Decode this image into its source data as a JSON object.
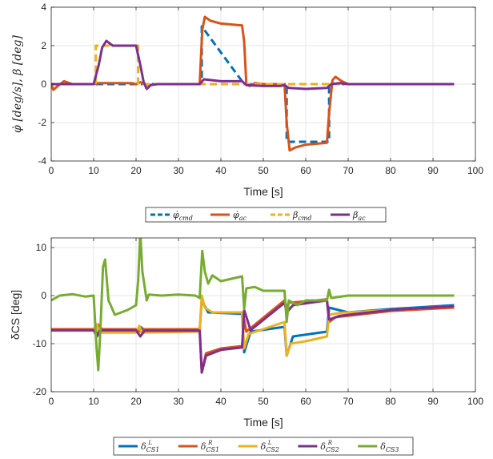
{
  "colors": {
    "blue": "#0072BD",
    "orange": "#D95319",
    "yellow": "#EDB120",
    "purple": "#7E2F8E",
    "green": "#77AC30",
    "axis": "#262626",
    "grid": "#e6e6e6"
  },
  "chart_data": [
    {
      "type": "line",
      "title": "",
      "xlabel": "Time [s]",
      "ylabel": "φ̇ [deg/s], β [deg]",
      "xlim": [
        0,
        100
      ],
      "ylim": [
        -4,
        4
      ],
      "xticks": [
        0,
        10,
        20,
        30,
        40,
        50,
        60,
        70,
        80,
        90,
        100
      ],
      "yticks": [
        -4,
        -2,
        0,
        2,
        4
      ],
      "grid": true,
      "legend_position": "below",
      "series": [
        {
          "name": "φ̇cmd",
          "label_main": "φ̇",
          "label_sub": "cmd",
          "color": "#0072BD",
          "dashed": true,
          "points": [
            [
              0,
              0
            ],
            [
              35.5,
              0
            ],
            [
              35.5,
              3
            ],
            [
              45.5,
              0
            ],
            [
              55.5,
              0
            ],
            [
              55.5,
              -3
            ],
            [
              65.5,
              -3
            ],
            [
              65.5,
              0
            ],
            [
              95,
              0
            ]
          ]
        },
        {
          "name": "φ̇ac",
          "label_main": "φ̇",
          "label_sub": "ac",
          "color": "#D95319",
          "dashed": false,
          "points": [
            [
              0,
              0
            ],
            [
              0.5,
              -0.3
            ],
            [
              1.5,
              -0.1
            ],
            [
              3,
              0.15
            ],
            [
              5,
              0
            ],
            [
              10,
              0
            ],
            [
              11,
              0.05
            ],
            [
              19,
              0.05
            ],
            [
              20,
              0
            ],
            [
              21,
              0.1
            ],
            [
              23,
              -0.05
            ],
            [
              25,
              0
            ],
            [
              35,
              0
            ],
            [
              35.6,
              2.8
            ],
            [
              36.2,
              3.5
            ],
            [
              37.5,
              3.3
            ],
            [
              40,
              3.15
            ],
            [
              45,
              3.05
            ],
            [
              45.5,
              2.2
            ],
            [
              46,
              0
            ],
            [
              46.8,
              -0.1
            ],
            [
              48,
              0.05
            ],
            [
              50,
              0
            ],
            [
              55,
              0
            ],
            [
              55.5,
              -2
            ],
            [
              56.2,
              -3.45
            ],
            [
              57.5,
              -3.3
            ],
            [
              60,
              -3.15
            ],
            [
              65,
              -3.05
            ],
            [
              65.5,
              -1.5
            ],
            [
              66.3,
              0.2
            ],
            [
              67,
              0.38
            ],
            [
              68.5,
              0.15
            ],
            [
              70,
              0
            ],
            [
              95,
              0
            ]
          ]
        },
        {
          "name": "βcmd",
          "label_main": "β",
          "label_sub": "cmd",
          "color": "#EDB120",
          "dashed": true,
          "points": [
            [
              0,
              0
            ],
            [
              10.5,
              0
            ],
            [
              10.5,
              2
            ],
            [
              20.5,
              2
            ],
            [
              20.5,
              0
            ],
            [
              95,
              0
            ]
          ]
        },
        {
          "name": "βac",
          "label_main": "β",
          "label_sub": "ac",
          "color": "#7E2F8E",
          "dashed": false,
          "points": [
            [
              0,
              0
            ],
            [
              10,
              0
            ],
            [
              11.2,
              1
            ],
            [
              12,
              1.9
            ],
            [
              13,
              2.25
            ],
            [
              14.5,
              2
            ],
            [
              20,
              2
            ],
            [
              21,
              1
            ],
            [
              21.8,
              0.1
            ],
            [
              22.5,
              -0.25
            ],
            [
              23.5,
              -0.05
            ],
            [
              25,
              0
            ],
            [
              35,
              0
            ],
            [
              36,
              0.25
            ],
            [
              40,
              0.15
            ],
            [
              45,
              0.15
            ],
            [
              46,
              -0.05
            ],
            [
              50,
              -0.1
            ],
            [
              54,
              -0.1
            ],
            [
              55,
              -0.05
            ],
            [
              56,
              -0.2
            ],
            [
              60,
              -0.25
            ],
            [
              65,
              -0.2
            ],
            [
              66,
              0
            ],
            [
              68,
              0.05
            ],
            [
              70,
              0
            ],
            [
              95,
              0
            ]
          ]
        }
      ]
    },
    {
      "type": "line",
      "title": "",
      "xlabel": "Time [s]",
      "ylabel": "δCS [deg]",
      "xlim": [
        0,
        100
      ],
      "ylim": [
        -20,
        12
      ],
      "xticks": [
        0,
        10,
        20,
        30,
        40,
        50,
        60,
        70,
        80,
        90,
        100
      ],
      "yticks": [
        -20,
        -10,
        0,
        10
      ],
      "grid": true,
      "legend_position": "below",
      "series": [
        {
          "name": "δCS1 L",
          "label_main": "δ",
          "label_sub": "CS1",
          "label_sup": "L",
          "color": "#0072BD",
          "points": [
            [
              0,
              -7
            ],
            [
              10,
              -7
            ],
            [
              11,
              -8
            ],
            [
              12,
              -7.5
            ],
            [
              20,
              -7.5
            ],
            [
              21,
              -6.5
            ],
            [
              22,
              -7.2
            ],
            [
              35,
              -7.2
            ],
            [
              35.5,
              -1
            ],
            [
              37,
              -3.5
            ],
            [
              45,
              -3.8
            ],
            [
              45.5,
              -11.8
            ],
            [
              47,
              -7.5
            ],
            [
              55,
              -6.5
            ],
            [
              55.5,
              -12.5
            ],
            [
              57,
              -8.5
            ],
            [
              65,
              -7.5
            ],
            [
              65.5,
              -2.5
            ],
            [
              70,
              -3.5
            ],
            [
              80,
              -2.8
            ],
            [
              95,
              -2
            ]
          ]
        },
        {
          "name": "δCS1 R",
          "label_main": "δ",
          "label_sub": "CS1",
          "label_sup": "R",
          "color": "#D95319",
          "points": [
            [
              0,
              -7
            ],
            [
              10,
              -7
            ],
            [
              11,
              -6
            ],
            [
              12,
              -7
            ],
            [
              20,
              -7
            ],
            [
              21,
              -7.5
            ],
            [
              22,
              -7
            ],
            [
              35,
              -7
            ],
            [
              35.5,
              -16
            ],
            [
              36.5,
              -12
            ],
            [
              40,
              -11
            ],
            [
              45,
              -10.5
            ],
            [
              45.5,
              -5
            ],
            [
              46,
              -7.5
            ],
            [
              55,
              -1
            ],
            [
              55.5,
              -2.5
            ],
            [
              56,
              -1.5
            ],
            [
              65,
              -0.8
            ],
            [
              65.5,
              -5.5
            ],
            [
              67,
              -4.5
            ],
            [
              80,
              -3.2
            ],
            [
              95,
              -2.5
            ]
          ]
        },
        {
          "name": "δCS2 L",
          "label_main": "δ",
          "label_sub": "CS2",
          "label_sup": "L",
          "color": "#EDB120",
          "points": [
            [
              0,
              -7.3
            ],
            [
              10,
              -7.3
            ],
            [
              10.8,
              -6
            ],
            [
              11.2,
              -7.7
            ],
            [
              20,
              -7.7
            ],
            [
              20.8,
              -6.3
            ],
            [
              21.3,
              -7.7
            ],
            [
              35,
              -7.5
            ],
            [
              35.5,
              0
            ],
            [
              36.2,
              -2.5
            ],
            [
              38,
              -3.5
            ],
            [
              45,
              -3.5
            ],
            [
              45.5,
              -11
            ],
            [
              46.5,
              -8
            ],
            [
              55,
              -5.5
            ],
            [
              55.5,
              -12.5
            ],
            [
              56.5,
              -10
            ],
            [
              60,
              -9.5
            ],
            [
              65,
              -8.5
            ],
            [
              65.5,
              -4
            ],
            [
              68,
              -3.6
            ],
            [
              80,
              -3
            ],
            [
              95,
              -2.2
            ]
          ]
        },
        {
          "name": "δCS2 R",
          "label_main": "δ",
          "label_sub": "CS2",
          "label_sup": "R",
          "color": "#7E2F8E",
          "points": [
            [
              0,
              -7.2
            ],
            [
              10,
              -7.2
            ],
            [
              10.8,
              -8.5
            ],
            [
              11.5,
              -7.2
            ],
            [
              20,
              -7.2
            ],
            [
              21,
              -8.5
            ],
            [
              22,
              -7.3
            ],
            [
              35,
              -7.3
            ],
            [
              35.5,
              -16
            ],
            [
              36.5,
              -12.5
            ],
            [
              40,
              -11.3
            ],
            [
              45,
              -10.8
            ],
            [
              45.5,
              -3
            ],
            [
              47,
              -7.2
            ],
            [
              55,
              -1.5
            ],
            [
              55.5,
              -3.5
            ],
            [
              57,
              -2
            ],
            [
              65,
              -1
            ],
            [
              65.5,
              -5
            ],
            [
              68,
              -4.2
            ],
            [
              80,
              -3
            ],
            [
              95,
              -2.2
            ]
          ]
        },
        {
          "name": "δCS3",
          "label_main": "δ",
          "label_sub": "CS3",
          "label_sup": "",
          "color": "#77AC30",
          "points": [
            [
              0,
              -1
            ],
            [
              2,
              0
            ],
            [
              5,
              0.3
            ],
            [
              8,
              -0.2
            ],
            [
              10,
              0
            ],
            [
              10.7,
              -11
            ],
            [
              11.1,
              -15.5
            ],
            [
              11.6,
              -7
            ],
            [
              12.2,
              6
            ],
            [
              12.7,
              7.5
            ],
            [
              13.5,
              -1
            ],
            [
              15,
              -4
            ],
            [
              18,
              -3
            ],
            [
              20,
              -2
            ],
            [
              20.5,
              3
            ],
            [
              21,
              13
            ],
            [
              21.5,
              5
            ],
            [
              22.5,
              -1
            ],
            [
              23,
              0.2
            ],
            [
              26,
              0
            ],
            [
              30,
              0.2
            ],
            [
              34,
              0
            ],
            [
              35,
              -0.5
            ],
            [
              35.6,
              9.3
            ],
            [
              36.2,
              5
            ],
            [
              37,
              2.5
            ],
            [
              38,
              4.2
            ],
            [
              40,
              3
            ],
            [
              45,
              4
            ],
            [
              45.5,
              -2.8
            ],
            [
              46,
              1.5
            ],
            [
              48,
              1.8
            ],
            [
              50,
              1
            ],
            [
              55,
              1
            ],
            [
              55.5,
              -5.5
            ],
            [
              56,
              -1
            ],
            [
              58,
              -2
            ],
            [
              60,
              -1
            ],
            [
              65,
              -1
            ],
            [
              65.5,
              1.2
            ],
            [
              66,
              -0.5
            ],
            [
              70,
              0
            ],
            [
              95,
              0
            ]
          ]
        }
      ]
    }
  ]
}
